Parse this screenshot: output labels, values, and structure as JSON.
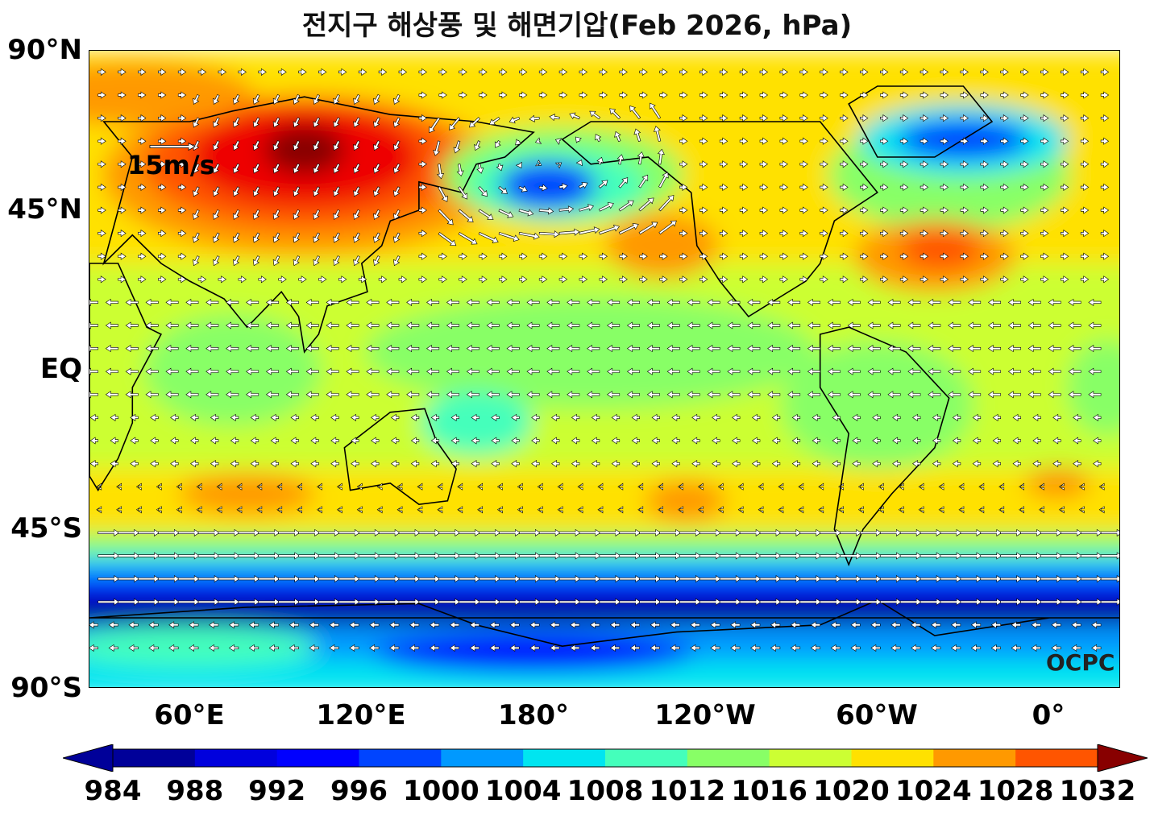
{
  "title": "전지구 해상풍 및 해면기압(Feb 2026, hPa)",
  "lat_labels": [
    "90°N",
    "45°N",
    "EQ",
    "45°S",
    "90°S"
  ],
  "lon_labels": [
    "60°E",
    "120°E",
    "180°",
    "120°W",
    "60°W",
    "0°"
  ],
  "reference_vector_label": "15m/s",
  "credit": "OCPC",
  "colorbar": {
    "levels": [
      "984",
      "988",
      "992",
      "996",
      "1000",
      "1004",
      "1008",
      "1012",
      "1016",
      "1020",
      "1024",
      "1028",
      "1032"
    ],
    "colors": [
      "#000099",
      "#0000dd",
      "#0000ff",
      "#0044ff",
      "#0099ff",
      "#00e5f0",
      "#44ffbb",
      "#88ff66",
      "#ccff33",
      "#ffe100",
      "#ff9900",
      "#ff5500",
      "#ee0000",
      "#880000"
    ]
  },
  "chart_data": {
    "type": "map",
    "variable": "sea level pressure (hPa) with sea-surface wind vectors",
    "lon_range": [
      25,
      385
    ],
    "lat_range": [
      -90,
      90
    ],
    "pressure_centers": [
      {
        "lon": 100,
        "lat": 60,
        "value_hpa": 1034
      },
      {
        "lon": 185,
        "lat": 52,
        "value_hpa": 998
      },
      {
        "lon": 330,
        "lat": 65,
        "value_hpa": 990
      },
      {
        "lon": 320,
        "lat": 33,
        "value_hpa": 1026
      },
      {
        "lon": 225,
        "lat": 35,
        "value_hpa": 1024
      },
      {
        "lon": 80,
        "lat": -35,
        "value_hpa": 1022
      },
      {
        "lon": 233,
        "lat": -37,
        "value_hpa": 1022
      },
      {
        "lon": 3,
        "lat": -32,
        "value_hpa": 1022
      },
      {
        "lon": 180,
        "lat": -68,
        "value_hpa": 984
      },
      {
        "lon": 60,
        "lat": -66,
        "value_hpa": 984
      }
    ],
    "reference_vector_ms": 15
  }
}
